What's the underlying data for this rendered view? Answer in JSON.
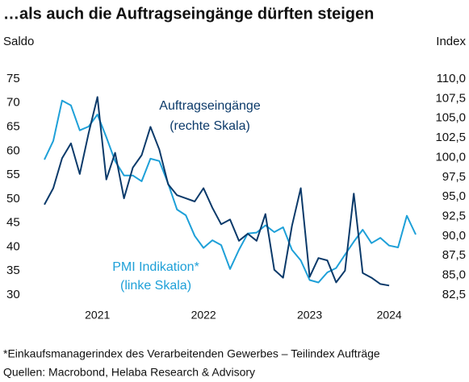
{
  "chart_data": {
    "type": "line",
    "title": "…als auch die Auftragseingänge dürften steigen",
    "y_label": "Saldo",
    "y2_label": "Index",
    "categories": [
      null,
      null,
      null,
      null,
      null,
      null,
      "2021",
      null,
      null,
      null,
      null,
      null,
      null,
      null,
      null,
      null,
      null,
      null,
      "2022",
      null,
      null,
      null,
      null,
      null,
      null,
      null,
      null,
      null,
      null,
      null,
      "2023",
      null,
      null,
      null,
      null,
      null,
      null,
      null,
      null,
      "2024",
      null,
      null,
      null
    ],
    "series": [
      {
        "name": "PMI Indikation*",
        "name_line2": "(linke Skala)",
        "color": "#1ea0d8",
        "axis": "y",
        "values": [
          58.2,
          62.1,
          70.5,
          69.5,
          64.3,
          65.1,
          67.6,
          62.9,
          57.9,
          54.9,
          54.9,
          53.7,
          58.4,
          57.9,
          53.2,
          47.8,
          46.6,
          42.3,
          39.8,
          41.4,
          40.4,
          35.4,
          39.4,
          42.8,
          43.0,
          44.5,
          43.1,
          44.1,
          39.4,
          37.2,
          33.1,
          32.6,
          34.7,
          35.6,
          38.4,
          41.1,
          43.6,
          40.8,
          41.9,
          40.3,
          39.9,
          46.5,
          42.6
        ]
      },
      {
        "name": "Auftragseingänge",
        "name_line2": "(rechte Skala)",
        "color": "#0b3a6a",
        "axis": "y2",
        "values": [
          94.0,
          96.1,
          99.9,
          101.8,
          97.9,
          103.1,
          107.7,
          97.2,
          100.6,
          94.8,
          98.7,
          100.3,
          103.9,
          101.0,
          96.6,
          95.2,
          94.8,
          94.4,
          96.1,
          93.6,
          91.5,
          92.1,
          89.4,
          90.3,
          89.4,
          92.8,
          85.7,
          84.7,
          91.3,
          96.1,
          84.8,
          87.2,
          86.9,
          84.1,
          85.6,
          95.4,
          85.3,
          84.7,
          83.9,
          83.7,
          null,
          null,
          null
        ]
      }
    ],
    "ylim": [
      30,
      75
    ],
    "yticks": [
      30,
      35,
      40,
      45,
      50,
      55,
      60,
      65,
      70,
      75
    ],
    "y2lim": [
      82.5,
      110
    ],
    "y2ticks": [
      {
        "value": 82.5,
        "label": "82,5"
      },
      {
        "value": 85,
        "label": "85,0"
      },
      {
        "value": 87.5,
        "label": "87,5"
      },
      {
        "value": 90,
        "label": "90,0"
      },
      {
        "value": 92.5,
        "label": "92,5"
      },
      {
        "value": 95,
        "label": "95,0"
      },
      {
        "value": 97.5,
        "label": "97,5"
      },
      {
        "value": 100,
        "label": "100,0"
      },
      {
        "value": 102.5,
        "label": "102,5"
      },
      {
        "value": 105,
        "label": "105,0"
      },
      {
        "value": 107.5,
        "label": "107,5"
      },
      {
        "value": 110,
        "label": "110,0"
      }
    ],
    "footnote": "*Einkaufsmanagerindex des Verarbeitenden Gewerbes – Teilindex Aufträge",
    "source": "Quellen: Macrobond, Helaba Research & Advisory"
  }
}
